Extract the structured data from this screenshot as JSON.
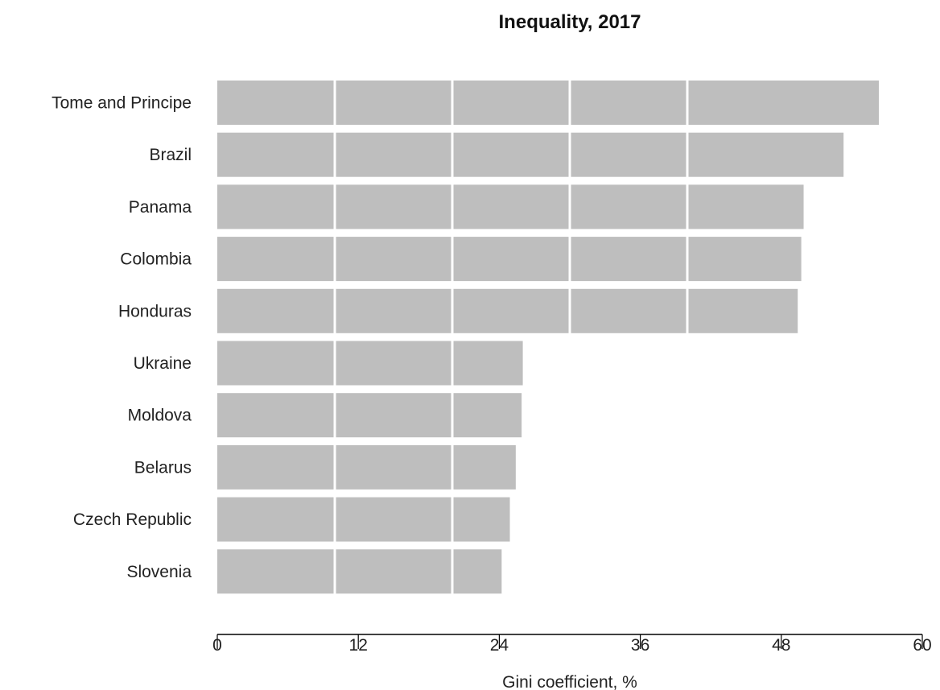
{
  "chart_data": {
    "type": "bar",
    "orientation": "horizontal",
    "title": "Inequality, 2017",
    "xlabel": "Gini coefficient, %",
    "ylabel": "",
    "categories": [
      "Tome and Principe",
      "Brazil",
      "Panama",
      "Colombia",
      "Honduras",
      "Ukraine",
      "Moldova",
      "Belarus",
      "Czech Republic",
      "Slovenia"
    ],
    "values": [
      56.3,
      53.3,
      49.9,
      49.7,
      49.4,
      26.0,
      25.9,
      25.4,
      24.9,
      24.2
    ],
    "xlim": [
      0,
      60
    ],
    "xticks": [
      0,
      12,
      24,
      36,
      48,
      60
    ],
    "xtick_labels": [
      "0",
      "12",
      "24",
      "36",
      "48",
      "60"
    ],
    "grid_values": [
      10,
      20,
      30,
      40
    ],
    "grid": true,
    "legend": "none",
    "bar_color": "#bebebe",
    "grid_color": "#ffffff",
    "axis_color": "#000000"
  }
}
